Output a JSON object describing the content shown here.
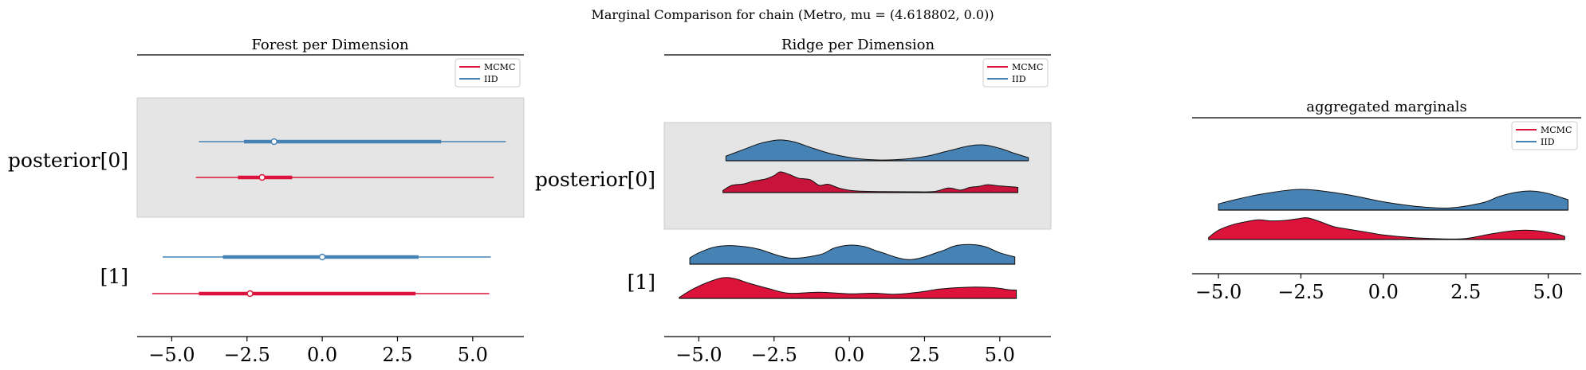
{
  "suptitle": "Marginal Comparison for chain (Metro, mu = (4.618802, 0.0))",
  "colors": {
    "mcmc": "#dc143c",
    "mcmc_ridge0": "#c8143a",
    "iid": "#4682b4",
    "band": "#e5e5e5"
  },
  "chart_data": [
    {
      "type": "forest",
      "title": "Forest per Dimension",
      "x_ticks": [
        "−5.0",
        "−2.5",
        "0.0",
        "2.5",
        "5.0"
      ],
      "x_tick_values": [
        -5,
        -2.5,
        0,
        2.5,
        5
      ],
      "xlim": [
        -6.15,
        6.7
      ],
      "y_labels": [
        "posterior[0]",
        "[1]"
      ],
      "legend": {
        "position": "top-right",
        "entries": [
          "MCMC",
          "IID"
        ]
      },
      "shaded_band": "posterior[0]",
      "series": [
        {
          "name": "IID",
          "dimension": "posterior[0]",
          "min": -4.1,
          "q25": -2.6,
          "median": -1.6,
          "q75": 3.95,
          "max": 6.1
        },
        {
          "name": "MCMC",
          "dimension": "posterior[0]",
          "min": -4.2,
          "q25": -2.8,
          "median": -2.0,
          "q75": -1.0,
          "max": 5.7
        },
        {
          "name": "IID",
          "dimension": "[1]",
          "min": -5.3,
          "q25": -3.3,
          "median": 0.0,
          "q75": 3.2,
          "max": 5.6
        },
        {
          "name": "MCMC",
          "dimension": "[1]",
          "min": -5.65,
          "q25": -4.1,
          "median": -2.4,
          "q75": 3.1,
          "max": 5.55
        }
      ]
    },
    {
      "type": "ridge",
      "title": "Ridge per Dimension",
      "x_ticks": [
        "−5.0",
        "−2.5",
        "0.0",
        "2.5",
        "5.0"
      ],
      "x_tick_values": [
        -5,
        -2.5,
        0,
        2.5,
        5
      ],
      "xlim": [
        -6.15,
        6.7
      ],
      "y_labels": [
        "posterior[0]",
        "[1]"
      ],
      "legend": {
        "position": "top-right",
        "entries": [
          "MCMC",
          "IID"
        ]
      },
      "shaded_band": "posterior[0]",
      "series": [
        {
          "name": "IID",
          "dimension": "posterior[0]",
          "x": [
            -4.1,
            -3.5,
            -3.0,
            -2.5,
            -2.2,
            -1.8,
            -1.2,
            -0.5,
            0.5,
            1.5,
            2.5,
            3.3,
            4.0,
            4.5,
            5.0,
            5.5,
            5.95
          ],
          "density": [
            0.22,
            0.55,
            0.82,
            0.98,
            1.0,
            0.9,
            0.6,
            0.3,
            0.07,
            0.05,
            0.2,
            0.48,
            0.72,
            0.76,
            0.6,
            0.35,
            0.15
          ]
        },
        {
          "name": "MCMC",
          "dimension": "posterior[0]",
          "x": [
            -4.2,
            -3.9,
            -3.5,
            -3.2,
            -2.8,
            -2.5,
            -2.3,
            -2.0,
            -1.7,
            -1.3,
            -1.0,
            -0.7,
            -0.3,
            0.2,
            1.0,
            2.0,
            2.8,
            3.3,
            3.7,
            4.0,
            4.3,
            4.6,
            5.0,
            5.4,
            5.6
          ],
          "density": [
            0.1,
            0.35,
            0.42,
            0.55,
            0.65,
            0.82,
            1.0,
            0.88,
            0.7,
            0.62,
            0.35,
            0.4,
            0.2,
            0.08,
            0.05,
            0.04,
            0.05,
            0.22,
            0.12,
            0.25,
            0.3,
            0.38,
            0.32,
            0.28,
            0.25
          ]
        },
        {
          "name": "IID",
          "dimension": "[1]",
          "x": [
            -5.3,
            -5.0,
            -4.5,
            -4.0,
            -3.5,
            -3.0,
            -2.0,
            -1.0,
            -0.5,
            0.0,
            0.5,
            1.0,
            2.0,
            3.0,
            3.5,
            4.0,
            4.5,
            5.0,
            5.5
          ],
          "density": [
            0.3,
            0.55,
            0.82,
            0.9,
            0.85,
            0.72,
            0.3,
            0.45,
            0.78,
            0.92,
            0.85,
            0.6,
            0.22,
            0.6,
            0.88,
            0.95,
            0.85,
            0.55,
            0.35
          ]
        },
        {
          "name": "MCMC",
          "dimension": "[1]",
          "x": [
            -5.65,
            -5.2,
            -4.7,
            -4.2,
            -3.8,
            -3.3,
            -2.7,
            -2.0,
            -1.0,
            0.0,
            0.8,
            1.5,
            2.3,
            3.0,
            3.6,
            4.2,
            4.8,
            5.3,
            5.55
          ],
          "density": [
            0.05,
            0.45,
            0.78,
            1.0,
            0.95,
            0.72,
            0.48,
            0.25,
            0.3,
            0.22,
            0.25,
            0.2,
            0.3,
            0.45,
            0.52,
            0.55,
            0.52,
            0.42,
            0.4
          ]
        }
      ]
    },
    {
      "type": "ridge",
      "title": "aggregated marginals",
      "x_ticks": [
        "−5.0",
        "−2.5",
        "0.0",
        "2.5",
        "5.0"
      ],
      "x_tick_values": [
        -5,
        -2.5,
        0,
        2.5,
        5
      ],
      "xlim": [
        -5.8,
        6.0
      ],
      "legend": {
        "position": "top-right",
        "entries": [
          "MCMC",
          "IID"
        ]
      },
      "series": [
        {
          "name": "IID",
          "x": [
            -5.0,
            -4.5,
            -4.0,
            -3.5,
            -3.0,
            -2.5,
            -2.0,
            -1.0,
            0.0,
            1.0,
            2.0,
            3.0,
            3.5,
            4.0,
            4.5,
            5.0,
            5.6
          ],
          "density": [
            0.3,
            0.5,
            0.68,
            0.82,
            0.94,
            1.0,
            0.95,
            0.72,
            0.4,
            0.18,
            0.1,
            0.35,
            0.65,
            0.85,
            0.92,
            0.8,
            0.5
          ]
        },
        {
          "name": "MCMC",
          "x": [
            -5.3,
            -5.0,
            -4.6,
            -4.2,
            -3.8,
            -3.4,
            -3.0,
            -2.6,
            -2.3,
            -1.9,
            -1.5,
            -1.0,
            -0.5,
            0.0,
            0.8,
            1.8,
            2.5,
            3.2,
            3.8,
            4.3,
            4.8,
            5.3,
            5.5
          ],
          "density": [
            0.1,
            0.45,
            0.7,
            0.85,
            0.95,
            0.9,
            0.92,
            1.0,
            1.05,
            0.85,
            0.62,
            0.48,
            0.35,
            0.22,
            0.1,
            0.03,
            0.05,
            0.25,
            0.4,
            0.45,
            0.4,
            0.25,
            0.15
          ]
        }
      ]
    }
  ]
}
